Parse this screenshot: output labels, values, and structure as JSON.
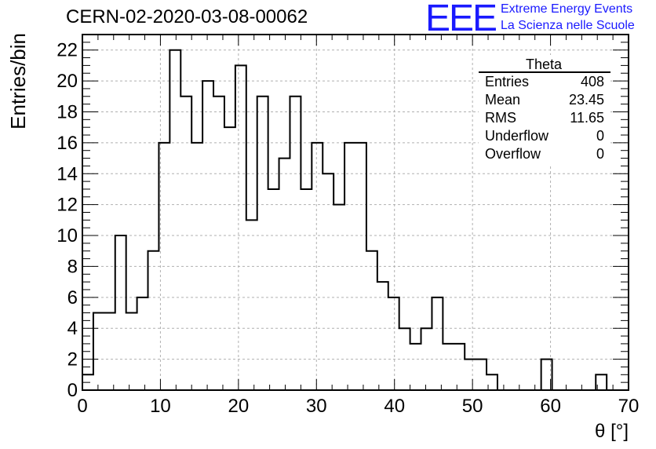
{
  "header": {
    "title": "CERN-02-2020-03-08-00062",
    "logo_mark": "EEE",
    "logo_line1": "Extreme Energy Events",
    "logo_line2": "La Scienza nelle Scuole",
    "logo_color": "#1a1aff"
  },
  "stats_box": {
    "title": "Theta",
    "rows": [
      {
        "label": "Entries",
        "value": "408"
      },
      {
        "label": "Mean",
        "value": "23.45"
      },
      {
        "label": "RMS",
        "value": "11.65"
      },
      {
        "label": "Underflow",
        "value": "0"
      },
      {
        "label": "Overflow",
        "value": "0"
      }
    ]
  },
  "chart_data": {
    "type": "bar",
    "style": "step-histogram",
    "xlabel": "θ [°]",
    "ylabel": "Entries/bin",
    "xlim": [
      0,
      70
    ],
    "ylim": [
      0,
      23
    ],
    "grid": true,
    "x_ticks": [
      0,
      10,
      20,
      30,
      40,
      50,
      60,
      70
    ],
    "y_ticks": [
      0,
      2,
      4,
      6,
      8,
      10,
      12,
      14,
      16,
      18,
      20,
      22
    ],
    "bin_edges": [
      0,
      1.4,
      2.8,
      4.2,
      5.6,
      7.0,
      8.4,
      9.8,
      11.2,
      12.6,
      14.0,
      15.4,
      16.8,
      18.2,
      19.6,
      21.0,
      22.4,
      23.8,
      25.2,
      26.6,
      28.0,
      29.4,
      30.8,
      32.2,
      33.6,
      35.0,
      36.4,
      37.8,
      39.2,
      40.6,
      42.0,
      43.4,
      44.8,
      46.2,
      47.6,
      49.0,
      50.4,
      51.8,
      53.2,
      54.6,
      56.0,
      57.4,
      58.8,
      60.2,
      61.6,
      63.0,
      64.4,
      65.8,
      67.2,
      68.6,
      70.0
    ],
    "values": [
      1,
      5,
      5,
      10,
      5,
      6,
      9,
      16,
      22,
      19,
      16,
      20,
      19,
      17,
      21,
      11,
      19,
      13,
      15,
      19,
      13,
      16,
      14,
      12,
      16,
      16,
      9,
      7,
      6,
      4,
      3,
      4,
      6,
      3,
      3,
      2,
      2,
      1,
      0,
      0,
      0,
      0,
      2,
      0,
      0,
      0,
      0,
      1,
      0,
      0
    ],
    "line_color": "#000000",
    "grid_color": "#b0b0b0"
  }
}
